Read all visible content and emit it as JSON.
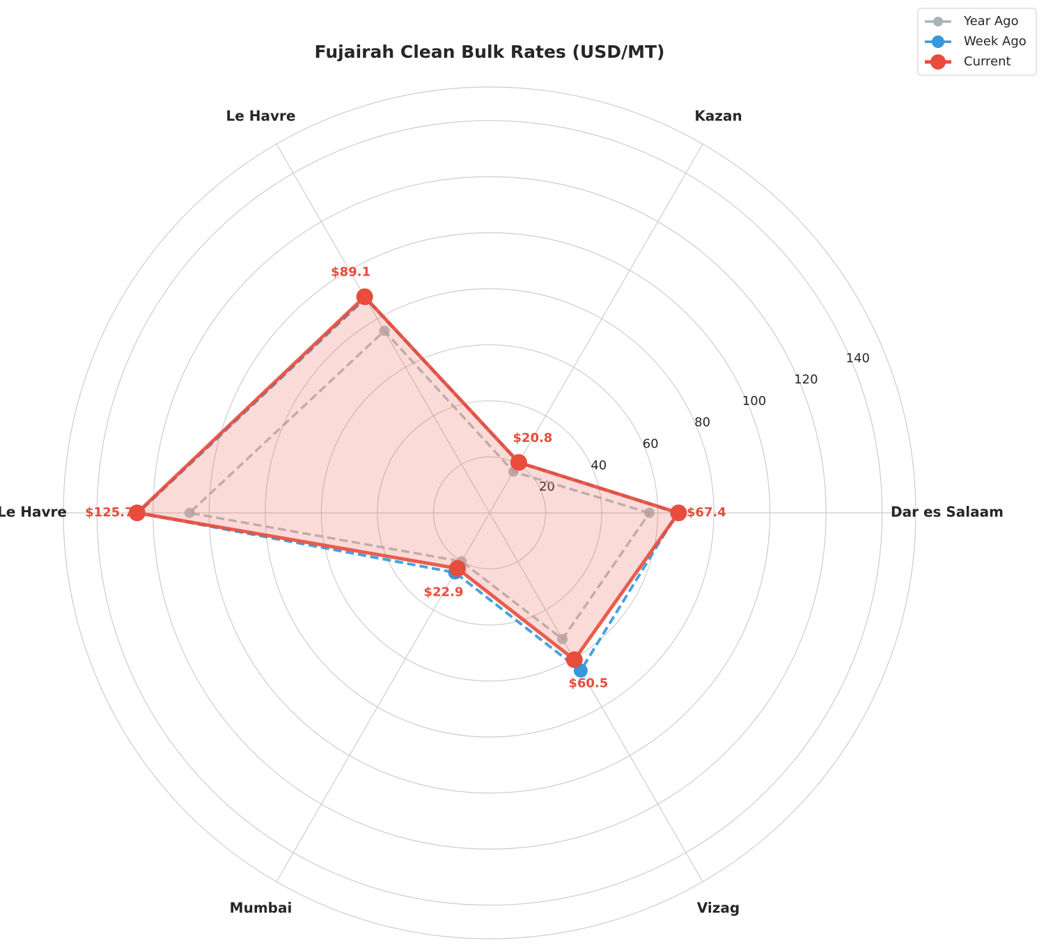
{
  "chart_data": {
    "type": "radar",
    "title": "Fujairah Clean Bulk Rates (USD/MT)",
    "categories": [
      "Dar es Salaam",
      "Kazan",
      "Le Havre",
      "Le Havre",
      "Mumbai",
      "Vizag"
    ],
    "ylim": [
      0,
      152
    ],
    "yticks": [
      20,
      40,
      60,
      80,
      100,
      120,
      140
    ],
    "grid": true,
    "legend": "upper right",
    "series": [
      {
        "name": "Year Ago",
        "color": "#a9b4b6",
        "dashed": true,
        "values": [
          57,
          17,
          75,
          107,
          20,
          52
        ]
      },
      {
        "name": "Week Ago",
        "color": "#3498db",
        "dashed": true,
        "values": [
          67,
          20.8,
          88.5,
          125.3,
          24.6,
          65
        ]
      },
      {
        "name": "Current",
        "color": "#e74c3c",
        "dashed": false,
        "fill": true,
        "values": [
          67.4,
          20.8,
          89.1,
          125.7,
          22.9,
          60.5
        ],
        "value_labels": [
          "$67.4",
          "$20.8",
          "$89.1",
          "$125.7",
          "$22.9",
          "$60.5"
        ]
      }
    ]
  }
}
